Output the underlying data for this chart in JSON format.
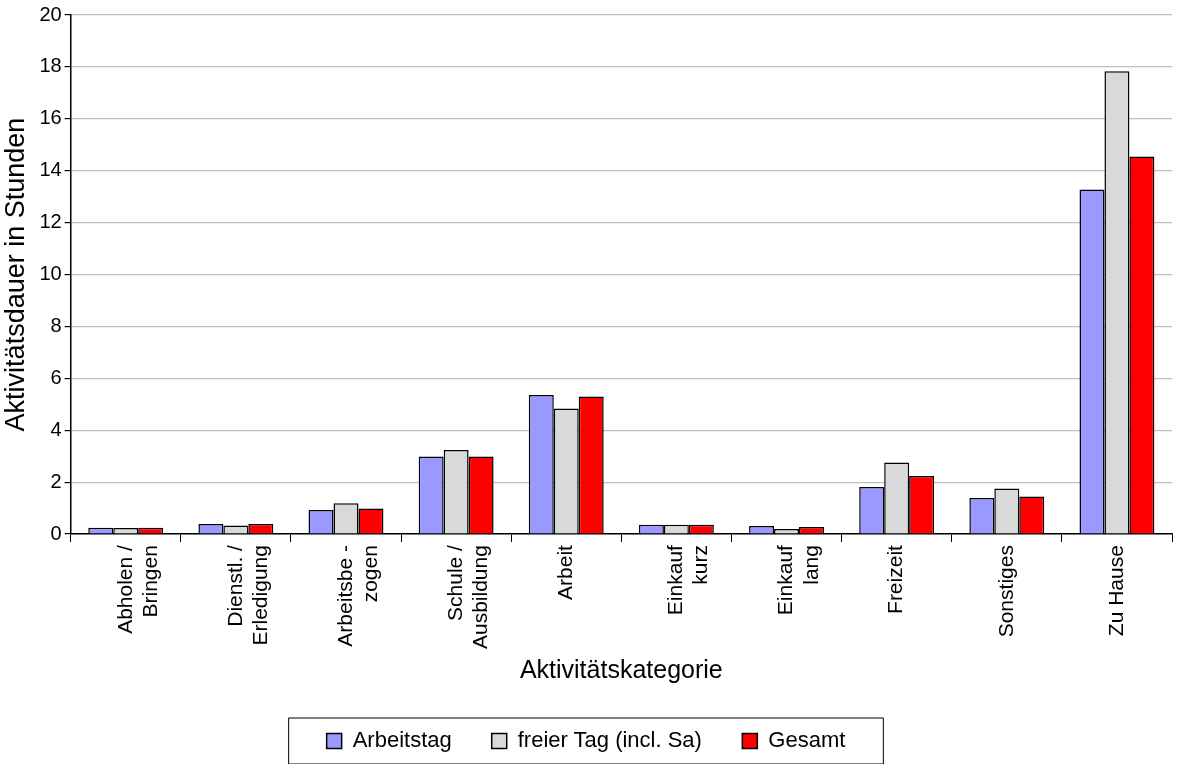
{
  "chart_data": {
    "type": "bar",
    "xlabel": "Aktivitätskategorie",
    "ylabel": "Aktivitätsdauer in Stunden",
    "categories": [
      "Abholen /\nBringen",
      "Dienstl. /\nErledigung",
      "Arbeitsbe -\nzogen",
      "Schule /\nAusbildung",
      "Arbeit",
      "Einkauf\nkurz",
      "Einkauf\nlang",
      "Freizeit",
      "Sonstiges",
      "Zu Hause"
    ],
    "series": [
      {
        "name": "Arbeitstag",
        "color": "#9999ff",
        "values": [
          0.24,
          0.39,
          0.93,
          2.99,
          5.36,
          0.36,
          0.31,
          1.81,
          1.39,
          13.28
        ]
      },
      {
        "name": "freier Tag (incl. Sa)",
        "color": "#d9d9d9",
        "values": [
          0.23,
          0.33,
          1.19,
          3.24,
          4.84,
          0.36,
          0.2,
          2.76,
          1.76,
          17.83
        ]
      },
      {
        "name": "Gesamt",
        "color": "#ff0000",
        "values": [
          0.24,
          0.39,
          0.99,
          2.99,
          5.3,
          0.36,
          0.27,
          2.24,
          1.45,
          14.55
        ]
      }
    ],
    "ylim": [
      0,
      20
    ],
    "yticks": [
      0,
      2,
      4,
      6,
      8,
      10,
      12,
      14,
      16,
      18,
      20
    ],
    "grid": "y",
    "legend": "bottom"
  }
}
